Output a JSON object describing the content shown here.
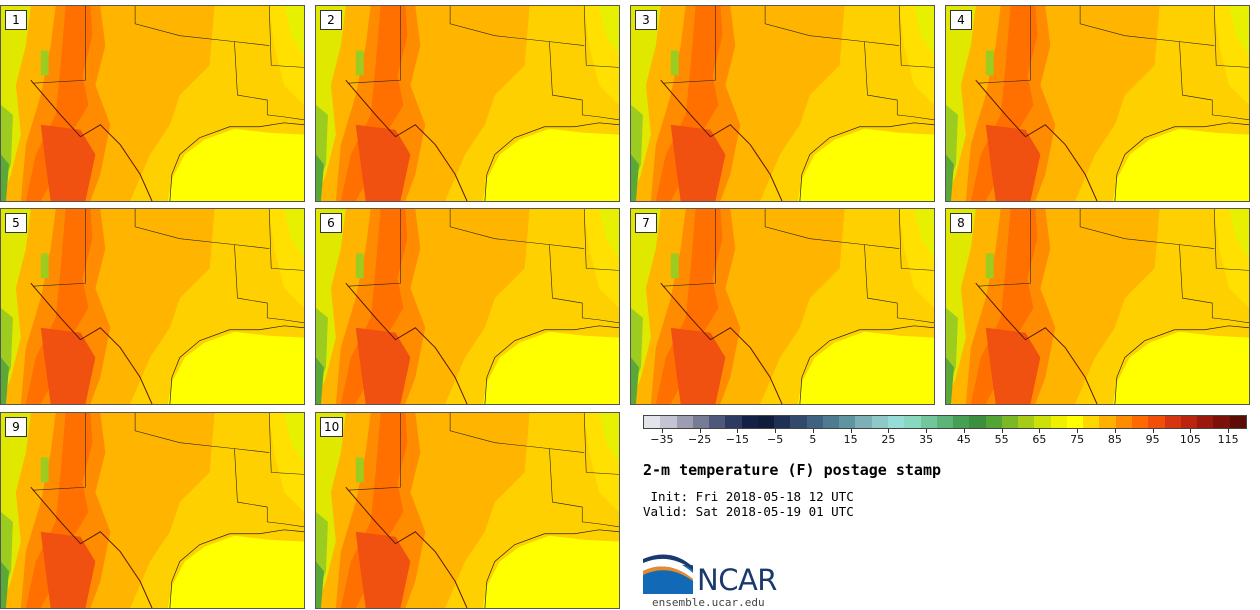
{
  "panels": [
    {
      "label": "1"
    },
    {
      "label": "2"
    },
    {
      "label": "3"
    },
    {
      "label": "4"
    },
    {
      "label": "5"
    },
    {
      "label": "6"
    },
    {
      "label": "7"
    },
    {
      "label": "8"
    },
    {
      "label": "9"
    },
    {
      "label": "10"
    }
  ],
  "colorbar": {
    "colors": [
      "#e3e3ea",
      "#c3c3d1",
      "#9c9cb2",
      "#777c95",
      "#4f587a",
      "#2d3a62",
      "#152047",
      "#0f1d3b",
      "#1e3054",
      "#31496b",
      "#3e6280",
      "#4f7b90",
      "#5f95a1",
      "#7cb0b4",
      "#8fc9c7",
      "#98dcd7",
      "#88d8bf",
      "#72c69b",
      "#5db479",
      "#45a055",
      "#3b8f3f",
      "#53a437",
      "#7bb827",
      "#a6cc17",
      "#cce00a",
      "#eef000",
      "#ffff00",
      "#ffd700",
      "#ffb100",
      "#ff8c00",
      "#ff6a00",
      "#f04e0a",
      "#d53510",
      "#bb2510",
      "#9c180c",
      "#7b1109",
      "#5c0b07"
    ],
    "tick_labels": [
      "−35",
      "−25",
      "−15",
      "−5",
      "5",
      "15",
      "25",
      "35",
      "45",
      "55",
      "65",
      "75",
      "85",
      "95",
      "105",
      "115"
    ],
    "tick_values": [
      -35,
      -25,
      -15,
      -5,
      5,
      15,
      25,
      35,
      45,
      55,
      65,
      75,
      85,
      95,
      105,
      115
    ],
    "min": -40,
    "max": 120
  },
  "title": "2-m temperature (F) postage stamp",
  "init_line": " Init: Fri 2018-05-18 12 UTC",
  "valid_line": "Valid: Sat 2018-05-19 01 UTC",
  "logo": {
    "text": "NCAR",
    "url_text": "ensemble.ucar.edu"
  }
}
